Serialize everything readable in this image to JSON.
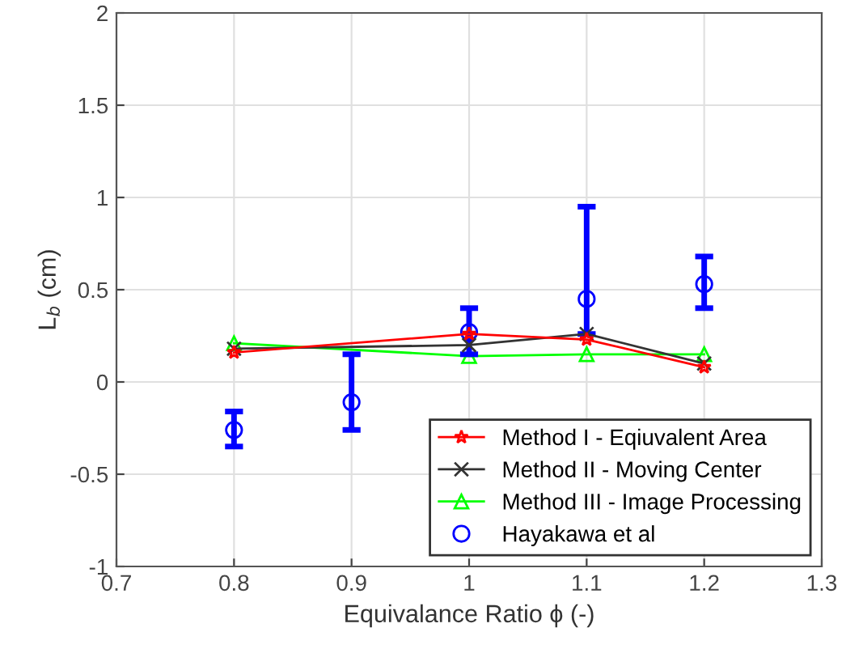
{
  "chart_data": {
    "type": "line",
    "xlabel": "Equivalance Ratio ϕ (-)",
    "ylabel": "L$_{b}$ (cm)",
    "x": [
      0.8,
      0.9,
      1.0,
      1.1,
      1.2
    ],
    "xlim": [
      0.7,
      1.3
    ],
    "xticks": [
      0.7,
      0.8,
      0.9,
      1,
      1.1,
      1.2,
      1.3
    ],
    "ylim": [
      -1,
      2
    ],
    "yticks": [
      -1,
      -0.5,
      0,
      0.5,
      1,
      1.5,
      2
    ],
    "grid": true,
    "legend": "bottom right",
    "series": [
      {
        "name": "Method I - Eqiuvalent Area",
        "color": "#ff0000",
        "marker": "star",
        "x": [
          0.8,
          1.0,
          1.1,
          1.2
        ],
        "values": [
          0.16,
          0.26,
          0.23,
          0.08
        ]
      },
      {
        "name": "Method II - Moving Center",
        "color": "#333333",
        "marker": "cross",
        "x": [
          0.8,
          1.0,
          1.1,
          1.2
        ],
        "values": [
          0.18,
          0.2,
          0.26,
          0.1
        ]
      },
      {
        "name": "Method III - Image Processing",
        "color": "#00ff00",
        "marker": "triangle",
        "x": [
          0.8,
          1.0,
          1.1,
          1.2
        ],
        "values": [
          0.21,
          0.14,
          0.15,
          0.15
        ]
      },
      {
        "name": "Hayakawa et al",
        "color": "#0000ff",
        "type": "scatter",
        "marker": "circle",
        "values": [
          -0.26,
          -0.11,
          0.27,
          0.45,
          0.53
        ],
        "errors": [
          [
            -0.35,
            -0.16
          ],
          [
            -0.26,
            0.15
          ],
          [
            0.15,
            0.4
          ],
          [
            0.26,
            0.95
          ],
          [
            0.4,
            0.68
          ]
        ]
      }
    ]
  }
}
